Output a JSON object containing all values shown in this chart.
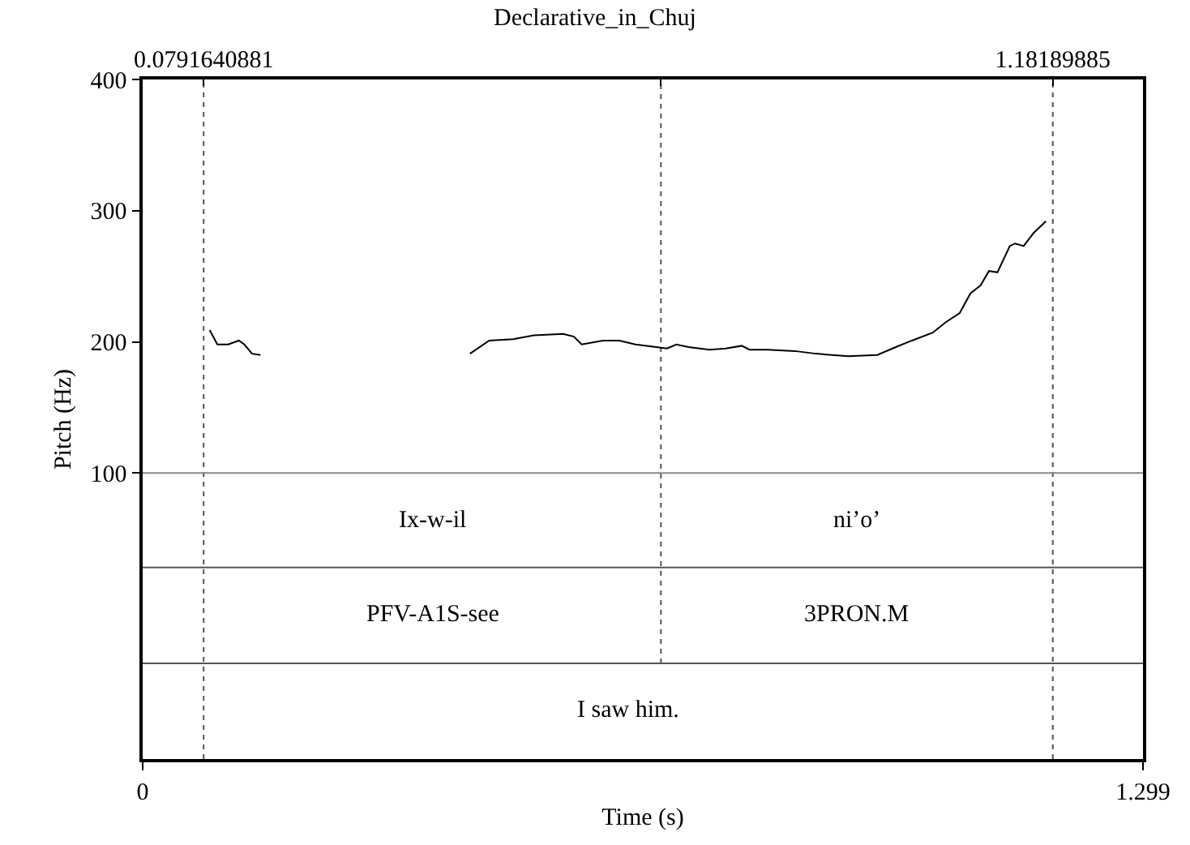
{
  "chart_data": {
    "type": "line",
    "title": "Declarative_in_Chuj",
    "xlabel": "Time (s)",
    "ylabel": "Pitch (Hz)",
    "x": [
      0.087,
      0.097,
      0.111,
      0.125,
      0.132,
      0.142,
      0.153,
      0.29,
      0.425,
      0.45,
      0.481,
      0.508,
      0.546,
      0.56,
      0.57,
      0.598,
      0.619,
      0.64,
      0.667,
      0.681,
      0.693,
      0.709,
      0.736,
      0.757,
      0.778,
      0.788,
      0.812,
      0.847,
      0.874,
      0.916,
      0.954,
      0.978,
      0.999,
      1.026,
      1.043,
      1.061,
      1.075,
      1.088,
      1.099,
      1.11,
      1.126,
      1.133,
      1.144,
      1.157,
      1.173
    ],
    "series": [
      {
        "color": "#000000",
        "values": [
          209,
          198,
          198,
          201,
          198,
          191,
          190,
          null,
          191,
          201,
          202,
          205,
          206,
          204,
          198,
          201,
          201,
          198,
          196,
          195,
          198,
          196,
          194,
          195,
          197,
          194,
          194,
          193,
          191,
          189,
          190,
          196,
          201,
          207,
          215,
          222,
          237,
          243,
          254,
          253,
          273,
          275,
          273,
          283,
          292
        ]
      }
    ],
    "xlim": [
      0,
      1.299
    ],
    "xticks": [
      0,
      1.299
    ],
    "x2lim": [
      0,
      1.299
    ],
    "x2ticks": [
      0.0791640881,
      {
        "value": 0.673,
        "label": null
      },
      1.18189885
    ],
    "ylim": [
      -118,
      400
    ],
    "yticks": [
      100,
      200,
      300,
      400
    ],
    "ref_lines": [
      {
        "axis": "x",
        "value": 0.0791640881,
        "color": "#555555",
        "line_style": "dotted"
      },
      {
        "axis": "x",
        "value": 0.673,
        "color": "#555555",
        "line_style": "dotted"
      },
      {
        "axis": "x",
        "value": 1.18189885,
        "color": "#555555",
        "line_style": "dotted"
      },
      {
        "axis": "y",
        "value": 100,
        "color": "#888888",
        "line_style": "solid"
      },
      {
        "axis": "y",
        "value": 28,
        "color": "#555555",
        "line_style": "solid"
      },
      {
        "axis": "y",
        "value": -45,
        "color": "#555555",
        "line_style": "solid"
      }
    ],
    "annotations": [
      "Ix-w-il",
      "ni’o’",
      "PFV-A1S-see",
      "3PRON.M",
      "I saw him."
    ],
    "line_style": "solid"
  }
}
